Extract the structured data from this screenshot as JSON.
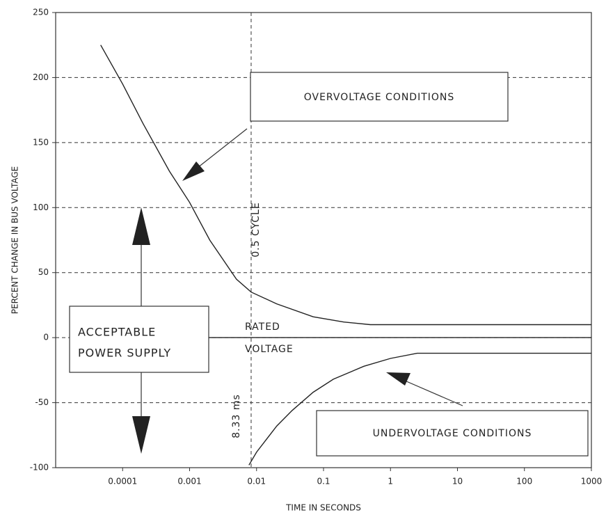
{
  "chart_data": {
    "type": "line",
    "x_label": "TIME IN SECONDS",
    "y_label": "PERCENT CHANGE IN BUS VOLTAGE",
    "xscale": "log",
    "xlim": [
      1e-05,
      1000
    ],
    "ylim": [
      -100,
      250
    ],
    "xticks": [
      0.0001,
      0.001,
      0.01,
      0.1,
      1,
      10,
      100,
      1000
    ],
    "yticks": [
      -100,
      -50,
      0,
      50,
      100,
      150,
      200,
      250
    ],
    "grid": true,
    "series": [
      {
        "color": "#222222",
        "x": [
          4.7e-05,
          0.0001,
          0.0002,
          0.0005,
          0.001,
          0.002,
          0.005,
          0.0083,
          0.02,
          0.07,
          0.2,
          0.5,
          1000
        ],
        "values": [
          225,
          195,
          165,
          128,
          104,
          75,
          45,
          35,
          26,
          16,
          12,
          10,
          10
        ]
      },
      {
        "color": "#222222",
        "x": [
          0.0077,
          0.01,
          0.02,
          0.034,
          0.07,
          0.14,
          0.4,
          1,
          2.5,
          1000
        ],
        "values": [
          -98,
          -88,
          -68,
          -56,
          -42,
          -32,
          -22,
          -16,
          -12,
          -12
        ]
      },
      {
        "color": "#222222",
        "x": [
          0.001,
          1000
        ],
        "values": [
          0,
          0
        ]
      }
    ],
    "reference_x": 0.0083,
    "annotations": [
      "OVERVOLTAGE CONDITIONS",
      "UNDERVOLTAGE CONDITIONS",
      "ACCEPTABLE",
      "POWER SUPPLY",
      "RATED",
      "VOLTAGE",
      "0.5 CYCLE",
      "8.33 ms"
    ]
  }
}
